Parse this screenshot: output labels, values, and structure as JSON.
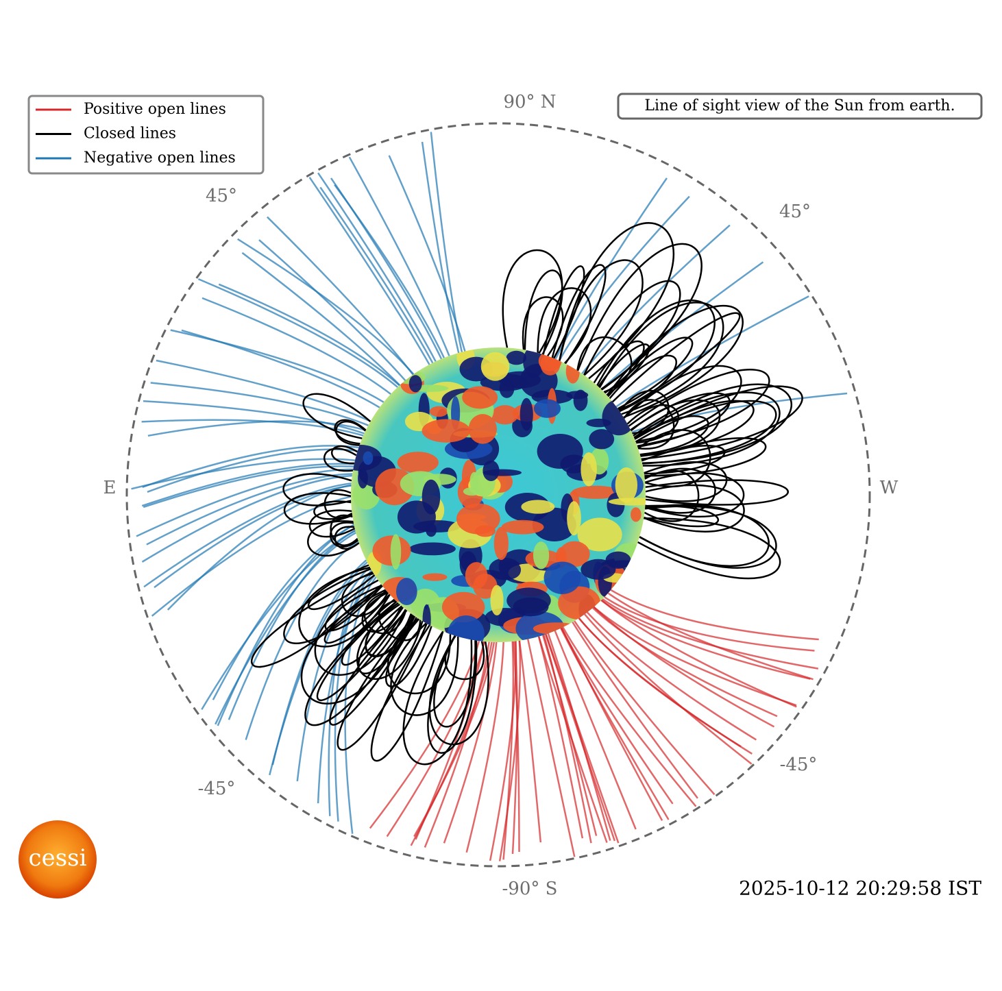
{
  "legend": {
    "items": [
      {
        "label": "Positive open lines",
        "color": "#d62728"
      },
      {
        "label": "Closed lines",
        "color": "#000000"
      },
      {
        "label": "Negative open lines",
        "color": "#1f77b4"
      }
    ]
  },
  "axis_labels": {
    "north": "90° N",
    "south": "-90° S",
    "east": "E",
    "west": "W",
    "ne": "45°",
    "nw": "45°",
    "se": "-45°",
    "sw": "-45°"
  },
  "annotation": "Line of sight view of the Sun from earth.",
  "timestamp": "2025-10-12 20:29:58 IST",
  "logo": "cessi"
}
